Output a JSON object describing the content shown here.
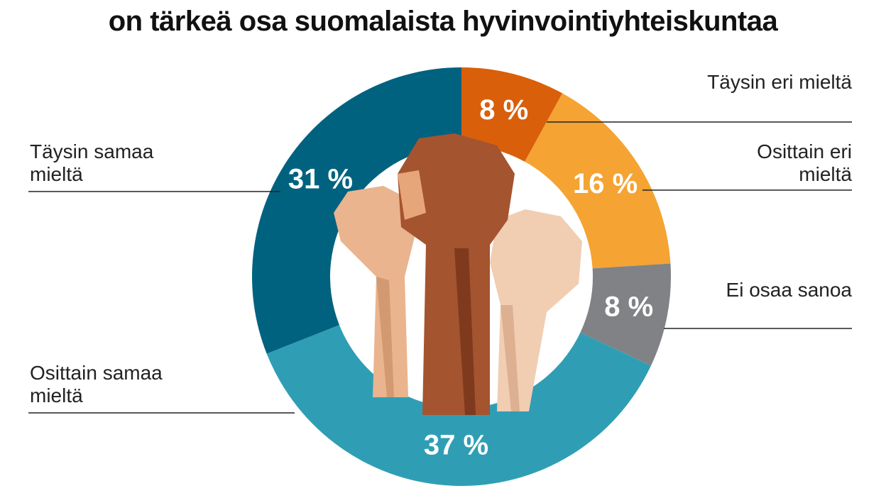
{
  "chart_data": {
    "type": "donut",
    "title": "on tärkeä osa suomalaista hyvinvointiyhteiskuntaa",
    "categories": [
      "Täysin eri mieltä",
      "Osittain eri mieltä",
      "Ei osaa sanoa",
      "Osittain samaa mieltä",
      "Täysin samaa mieltä"
    ],
    "values": [
      8,
      16,
      8,
      37,
      31
    ],
    "value_labels": [
      "8 %",
      "16 %",
      "8 %",
      "37 %",
      "31 %"
    ],
    "colors": [
      "#d95f0a",
      "#f5a332",
      "#808285",
      "#2f9eb5",
      "#00627f"
    ]
  }
}
